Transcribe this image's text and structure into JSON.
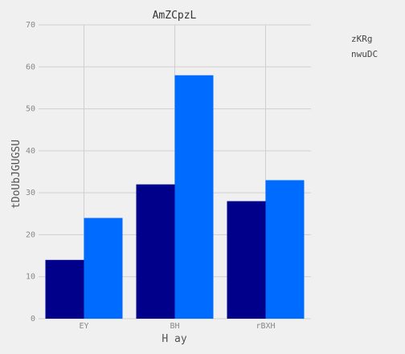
{
  "chart_data": {
    "type": "bar",
    "title": "AmZCpzL",
    "xlabel": "H ay",
    "ylabel": "tDoUbJGUGSU",
    "categories": [
      "EY",
      "BH",
      "rBXH"
    ],
    "series": [
      {
        "name": "zKRg",
        "values": [
          14,
          32,
          28
        ],
        "color": "#00008b"
      },
      {
        "name": "nwuDC",
        "values": [
          24,
          58,
          33
        ],
        "color": "#006bff"
      }
    ],
    "ylim": [
      0,
      70
    ],
    "yticks": [
      0,
      10,
      20,
      30,
      40,
      50,
      60,
      70
    ],
    "grid": true,
    "legend": {
      "position": "top-right",
      "show_swatches": false
    }
  }
}
